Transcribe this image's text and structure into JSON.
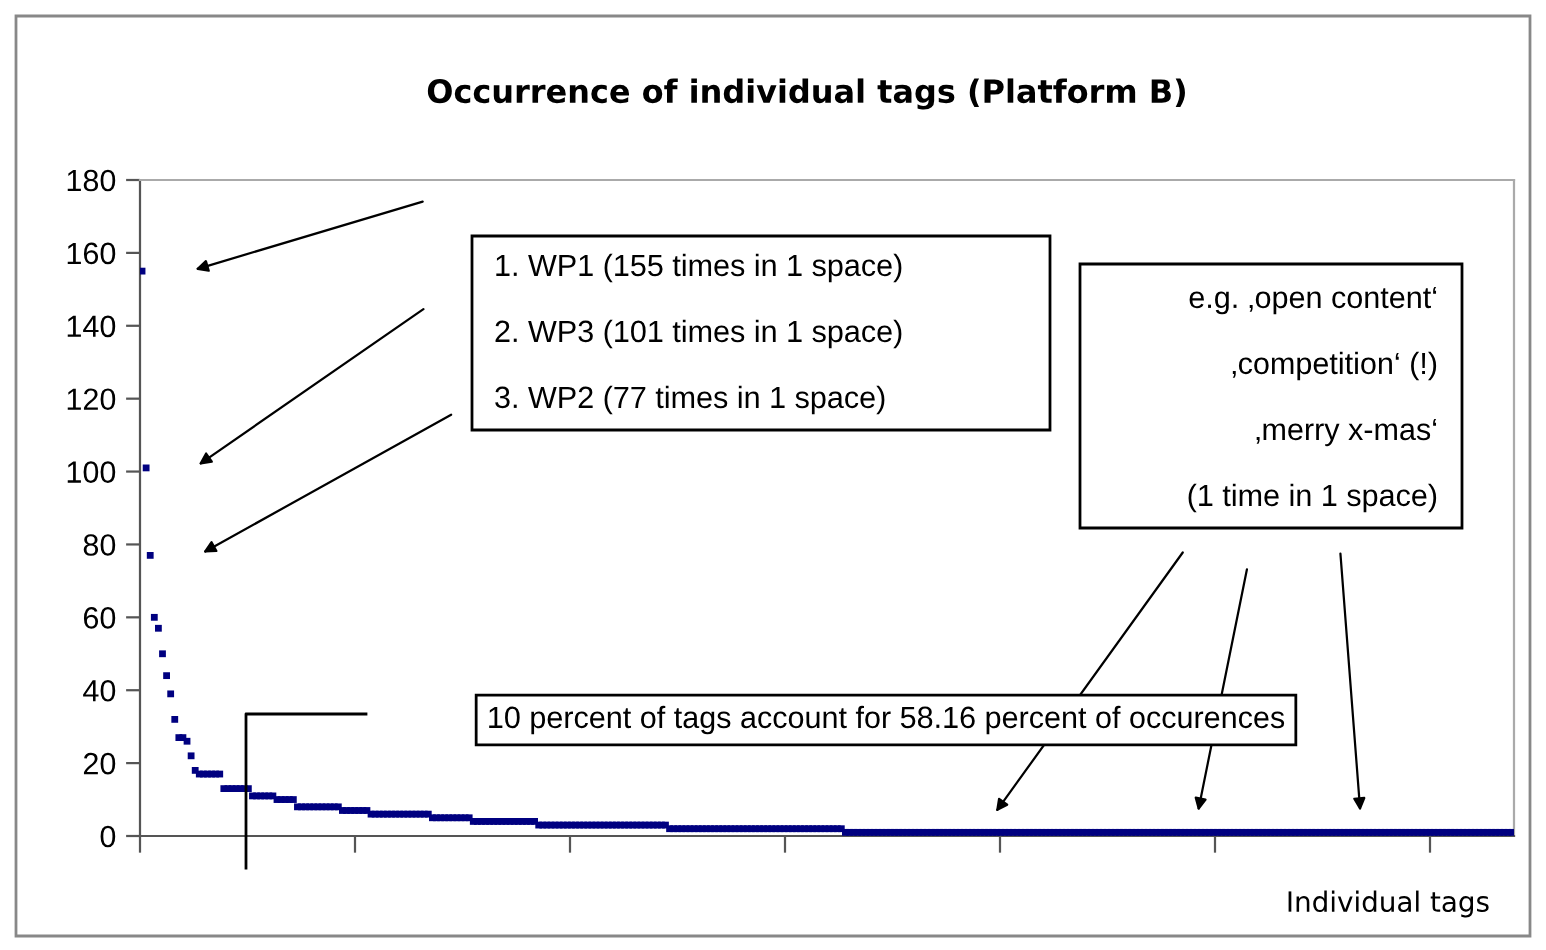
{
  "chart_data": {
    "type": "scatter",
    "title": "Occurrence of individual tags (Platform B)",
    "xlabel": "Individual tags",
    "categories": [
      null,
      null,
      null,
      null,
      null,
      null,
      null,
      null,
      null,
      null,
      null,
      null,
      null,
      null,
      null,
      null,
      null,
      null,
      null,
      null,
      null,
      null,
      null,
      null,
      null,
      null,
      null,
      null,
      null,
      null,
      null,
      null,
      null,
      null,
      null,
      null,
      null,
      null,
      null,
      null,
      null,
      null,
      null,
      null,
      null,
      null,
      null,
      null,
      null,
      null,
      null,
      null,
      null,
      null,
      null,
      null,
      null,
      null,
      null,
      null,
      null,
      null,
      null,
      null,
      null,
      null,
      null,
      null,
      null,
      null,
      null,
      null,
      null,
      null,
      null,
      null,
      null,
      null,
      null,
      null,
      null,
      null,
      null,
      null,
      null,
      null,
      null,
      null,
      null,
      null,
      null,
      null,
      null,
      null,
      null,
      null,
      null,
      null,
      null,
      null,
      null,
      null,
      null,
      null,
      null,
      null,
      null,
      null,
      null,
      null,
      null,
      null,
      null,
      null,
      null,
      null,
      null,
      null,
      null,
      null,
      null,
      null,
      null,
      null,
      null,
      null,
      null,
      null,
      null,
      null,
      null,
      null,
      null,
      null,
      null,
      null,
      null,
      null,
      null,
      null,
      null,
      null,
      null,
      null,
      null,
      null,
      null,
      null,
      null,
      null,
      null,
      null,
      null,
      null,
      null,
      null,
      null,
      null,
      null,
      null,
      null,
      null,
      null,
      null,
      null,
      null,
      null,
      null,
      null,
      null,
      null,
      null,
      null,
      null,
      null,
      null,
      null,
      null,
      null,
      null,
      null,
      null,
      null,
      null,
      null,
      null,
      null,
      null,
      null,
      null,
      null,
      null,
      null,
      null,
      null,
      null,
      null,
      null,
      null,
      null,
      null,
      null,
      null,
      null,
      null,
      null,
      null,
      null,
      null,
      null,
      null,
      null,
      null,
      null,
      null,
      null,
      null,
      null,
      null,
      null,
      null,
      null,
      null,
      null,
      null,
      null,
      null,
      null,
      null,
      null,
      null,
      null,
      null,
      null,
      null,
      null,
      null,
      null,
      null,
      null,
      null,
      null,
      null,
      null,
      null,
      null,
      null,
      null,
      null,
      null,
      null,
      null,
      null,
      null,
      null,
      null,
      null,
      null,
      null,
      null,
      null,
      null,
      null,
      null,
      null,
      null,
      null,
      null,
      null,
      null,
      null,
      null,
      null,
      null,
      null,
      null,
      null,
      null,
      null,
      null,
      null,
      null,
      null,
      null,
      null,
      null,
      null,
      null,
      null,
      null,
      null,
      null,
      null,
      null,
      null,
      null,
      null,
      null,
      null,
      null,
      null,
      null,
      null,
      null,
      null,
      null,
      null,
      null,
      null,
      null,
      null,
      null,
      null,
      null,
      null,
      null,
      null,
      null,
      null,
      null,
      null,
      null,
      null,
      null,
      null,
      null,
      null,
      null,
      null,
      null,
      null,
      null,
      null,
      null,
      null,
      null
    ],
    "values": [
      155,
      101,
      77,
      60,
      57,
      50,
      44,
      39,
      32,
      27,
      27,
      26,
      22,
      18,
      17,
      17,
      17,
      17,
      17,
      17,
      13,
      13,
      13,
      13,
      13,
      13,
      13,
      11,
      11,
      11,
      11,
      11,
      11,
      10,
      10,
      10,
      10,
      10,
      8,
      8,
      8,
      8,
      8,
      8,
      8,
      8,
      8,
      8,
      8,
      7,
      7,
      7,
      7,
      7,
      7,
      7,
      6,
      6,
      6,
      6,
      6,
      6,
      6,
      6,
      6,
      6,
      6,
      6,
      6,
      6,
      6,
      5,
      5,
      5,
      5,
      5,
      5,
      5,
      5,
      5,
      5,
      4,
      4,
      4,
      4,
      4,
      4,
      4,
      4,
      4,
      4,
      4,
      4,
      4,
      4,
      4,
      4,
      3,
      3,
      3,
      3,
      3,
      3,
      3,
      3,
      3,
      3,
      3,
      3,
      3,
      3,
      3,
      3,
      3,
      3,
      3,
      3,
      3,
      3,
      3,
      3,
      3,
      3,
      3,
      3,
      3,
      3,
      3,
      3,
      2,
      2,
      2,
      2,
      2,
      2,
      2,
      2,
      2,
      2,
      2,
      2,
      2,
      2,
      2,
      2,
      2,
      2,
      2,
      2,
      2,
      2,
      2,
      2,
      2,
      2,
      2,
      2,
      2,
      2,
      2,
      2,
      2,
      2,
      2,
      2,
      2,
      2,
      2,
      2,
      2,
      2,
      2,
      1,
      1,
      1,
      1,
      1,
      1,
      1,
      1,
      1,
      1,
      1,
      1,
      1,
      1,
      1,
      1,
      1,
      1,
      1,
      1,
      1,
      1,
      1,
      1,
      1,
      1,
      1,
      1,
      1,
      1,
      1,
      1,
      1,
      1,
      1,
      1,
      1,
      1,
      1,
      1,
      1,
      1,
      1,
      1,
      1,
      1,
      1,
      1,
      1,
      1,
      1,
      1,
      1,
      1,
      1,
      1,
      1,
      1,
      1,
      1,
      1,
      1,
      1,
      1,
      1,
      1,
      1,
      1,
      1,
      1,
      1,
      1,
      1,
      1,
      1,
      1,
      1,
      1,
      1,
      1,
      1,
      1,
      1,
      1,
      1,
      1,
      1,
      1,
      1,
      1,
      1,
      1,
      1,
      1,
      1,
      1,
      1,
      1,
      1,
      1,
      1,
      1,
      1,
      1,
      1,
      1,
      1,
      1,
      1,
      1,
      1,
      1,
      1,
      1,
      1,
      1,
      1,
      1,
      1,
      1,
      1,
      1,
      1,
      1,
      1,
      1,
      1,
      1,
      1,
      1,
      1,
      1,
      1,
      1,
      1,
      1,
      1,
      1,
      1,
      1,
      1,
      1,
      1,
      1,
      1,
      1,
      1,
      1,
      1,
      1,
      1,
      1,
      1,
      1,
      1,
      1,
      1,
      1,
      1,
      1,
      1,
      1,
      1,
      1
    ],
    "color": "#000080",
    "marker": "square",
    "ylim": [
      0,
      180
    ],
    "yticks": [
      0,
      20,
      40,
      60,
      80,
      100,
      120,
      140,
      160,
      180
    ],
    "grid": false,
    "legend": false,
    "annotations": [
      "1. WP1 (155 times in 1 space)",
      "2. WP3 (101 times in 1 space)",
      "3. WP2 (77 times in 1 space)",
      "e.g. ‚open content‘",
      "‚competition‘ (!)",
      "‚merry x-mas‘",
      "(1 time in 1 space)",
      "10 percent of tags account for 58.16 percent of occurences"
    ]
  }
}
